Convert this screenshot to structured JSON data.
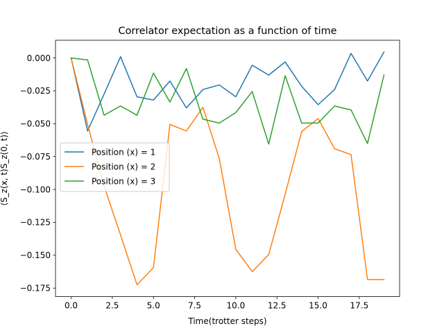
{
  "chart_data": {
    "type": "line",
    "title": "Correlator expectation as a function of time",
    "xlabel": "Time(trotter steps)",
    "ylabel": "⟨S_z(x, t)S_z(0, t)⟩",
    "xlim": [
      -0.95,
      19.95
    ],
    "ylim": [
      -0.1815,
      0.0135
    ],
    "x_ticks": [
      0.0,
      2.5,
      5.0,
      7.5,
      10.0,
      12.5,
      15.0,
      17.5
    ],
    "x_tick_labels": [
      "0.0",
      "2.5",
      "5.0",
      "7.5",
      "10.0",
      "12.5",
      "15.0",
      "17.5"
    ],
    "y_ticks": [
      0.0,
      -0.025,
      -0.05,
      -0.075,
      -0.1,
      -0.125,
      -0.15,
      -0.175
    ],
    "y_tick_labels": [
      "0.000",
      "−0.025",
      "−0.050",
      "−0.075",
      "−0.100",
      "−0.125",
      "−0.150",
      "−0.175"
    ],
    "grid": false,
    "legend_position": "center-left",
    "x": [
      0,
      1,
      2,
      3,
      4,
      5,
      6,
      7,
      8,
      9,
      10,
      11,
      12,
      13,
      14,
      15,
      16,
      17,
      18,
      19
    ],
    "series": [
      {
        "name": "Position (x) = 1",
        "color": "#1f77b4",
        "values": [
          0.0,
          -0.0555,
          -0.0275,
          0.001,
          -0.0295,
          -0.032,
          -0.0175,
          -0.038,
          -0.024,
          -0.0205,
          -0.0295,
          -0.0055,
          -0.013,
          -0.003,
          -0.0215,
          -0.0355,
          -0.024,
          0.0035,
          -0.0175,
          0.0045
        ]
      },
      {
        "name": "Position (x) = 2",
        "color": "#ff7f0e",
        "values": [
          0.0,
          -0.0505,
          -0.0975,
          -0.1345,
          -0.1725,
          -0.1595,
          -0.0505,
          -0.0555,
          -0.0375,
          -0.0765,
          -0.1455,
          -0.1625,
          -0.1495,
          -0.1035,
          -0.056,
          -0.046,
          -0.069,
          -0.0735,
          -0.1685,
          -0.1685
        ]
      },
      {
        "name": "Position (x) = 3",
        "color": "#2ca02c",
        "values": [
          0.0,
          -0.0015,
          -0.0435,
          -0.0365,
          -0.0435,
          -0.0115,
          -0.0335,
          -0.008,
          -0.0465,
          -0.0495,
          -0.0415,
          -0.0255,
          -0.0655,
          -0.0135,
          -0.0495,
          -0.0495,
          -0.0365,
          -0.0395,
          -0.065,
          -0.013
        ]
      }
    ]
  }
}
